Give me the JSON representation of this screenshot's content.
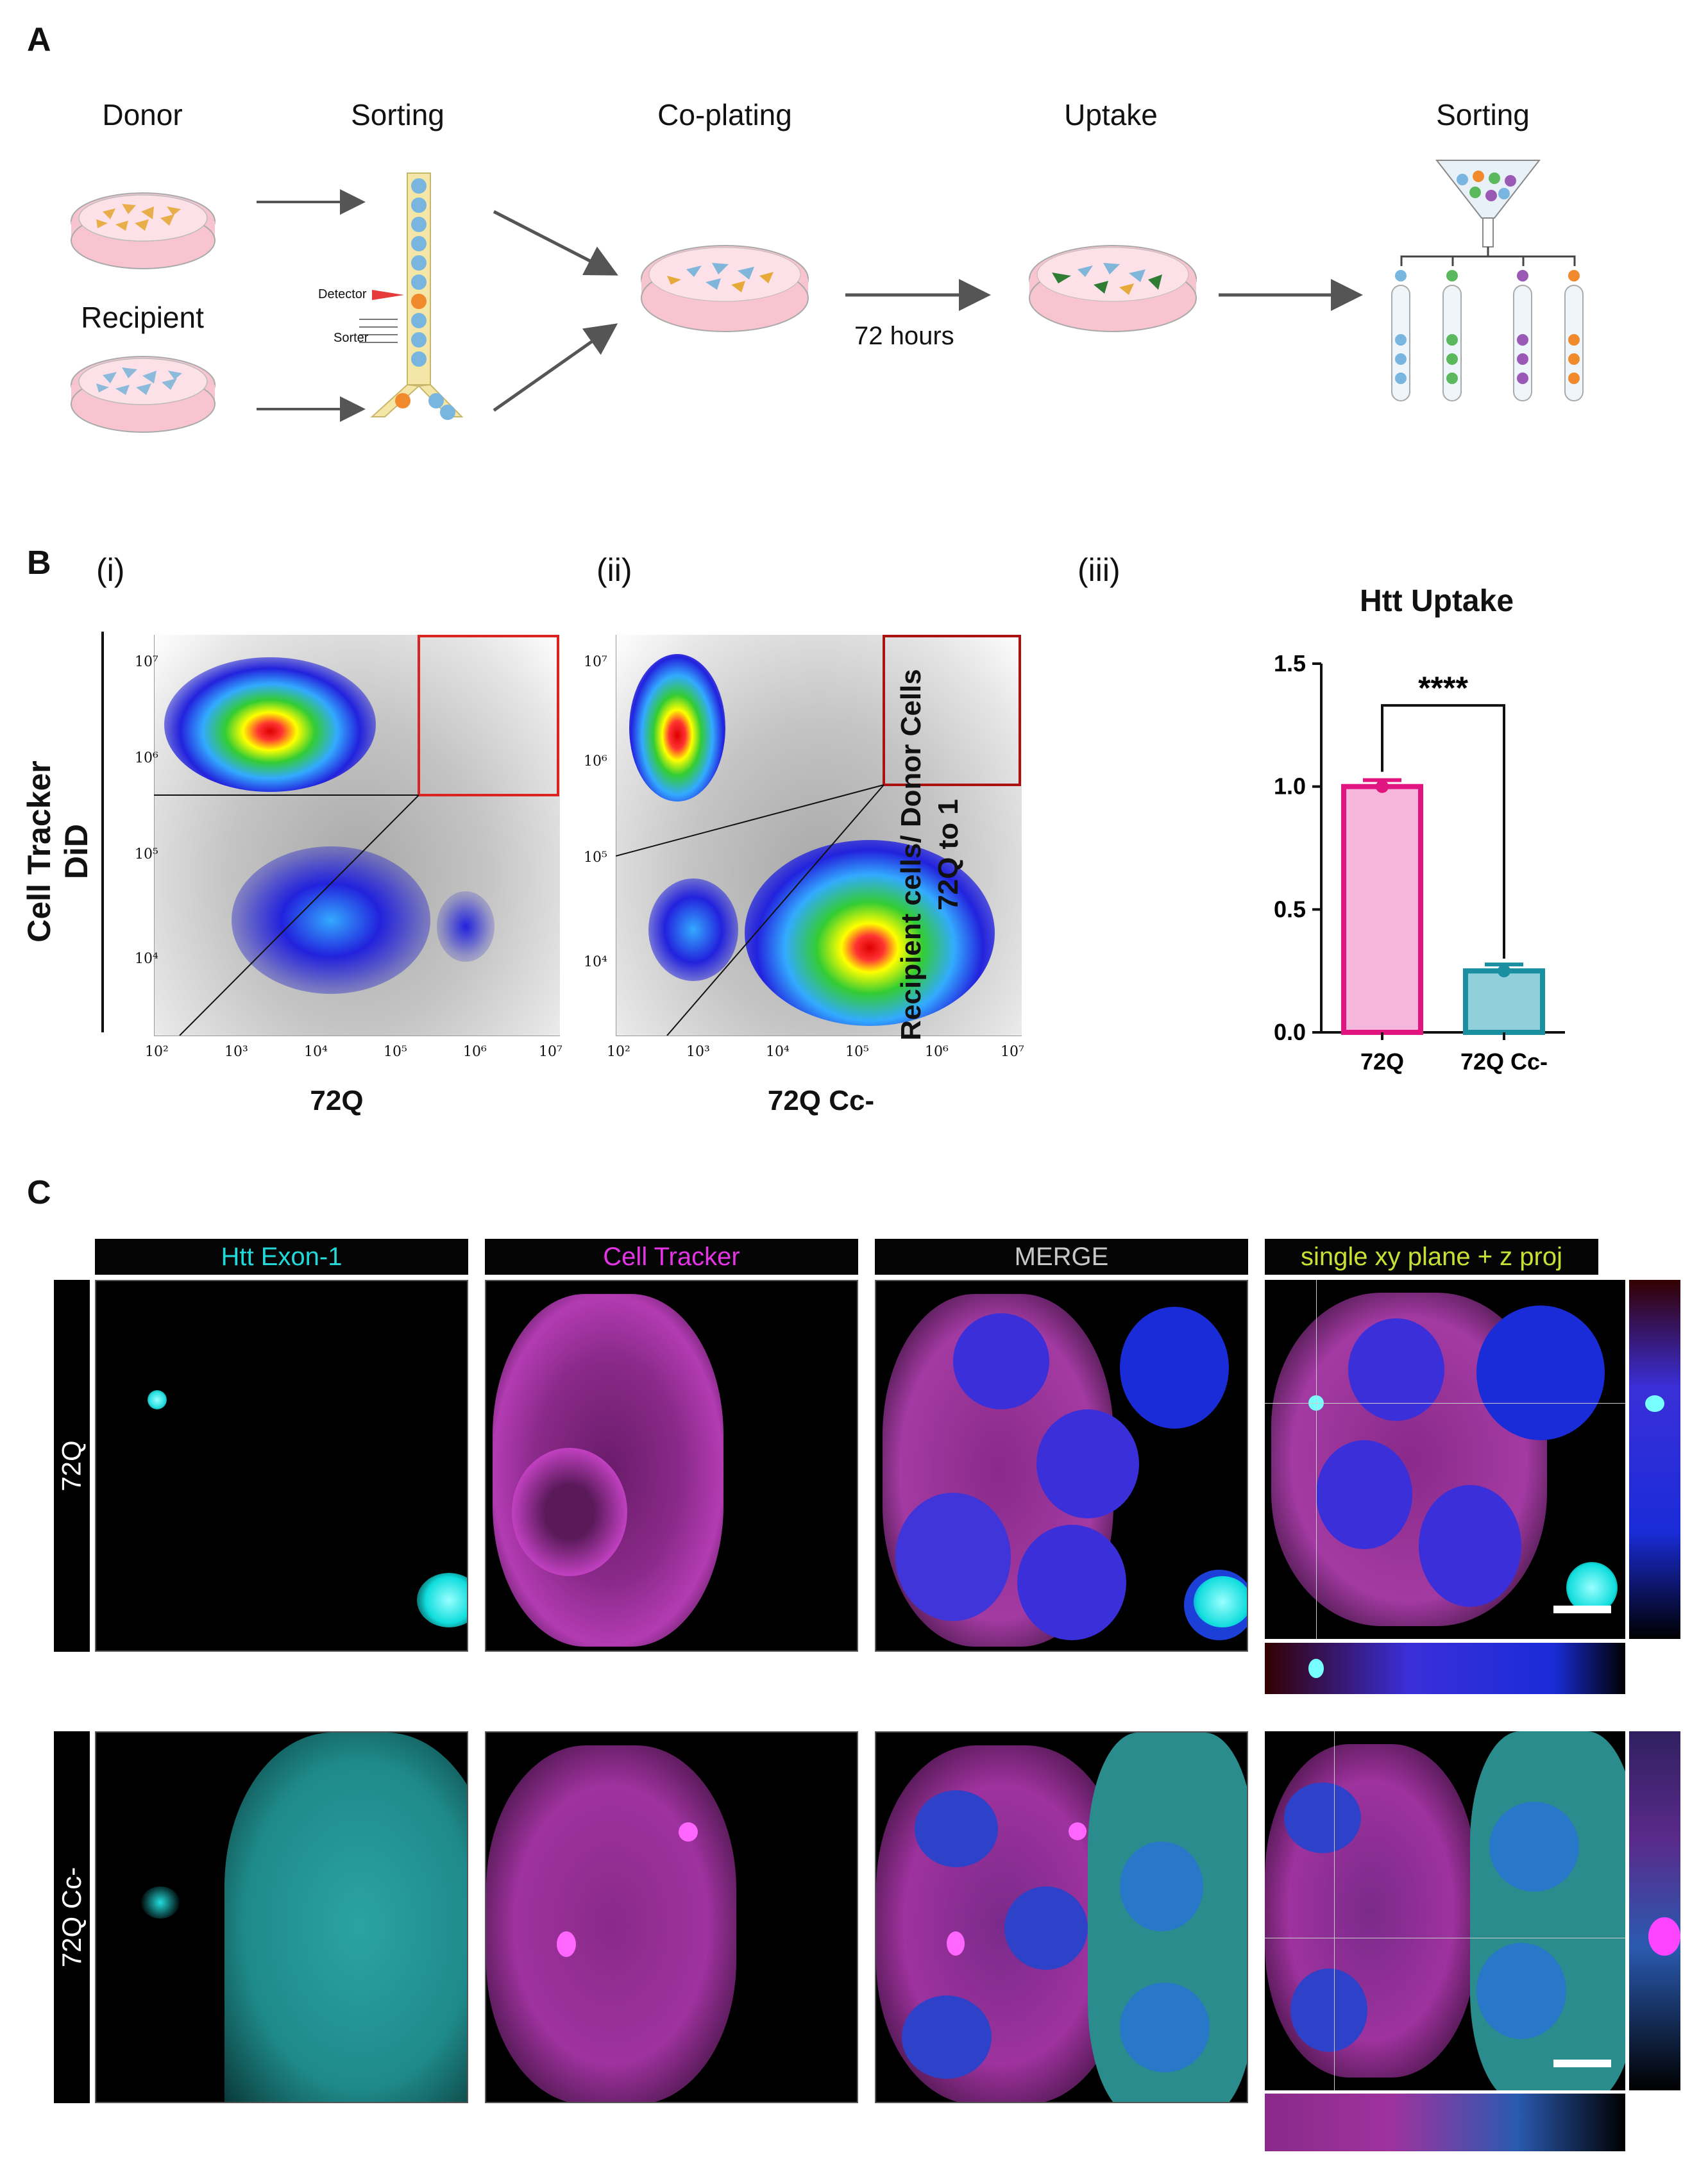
{
  "panel_a": {
    "letter": "A",
    "steps": {
      "donor": "Donor",
      "recipient": "Recipient",
      "sorting1": "Sorting",
      "coplating": "Co-plating",
      "uptake": "Uptake",
      "sorting2": "Sorting"
    },
    "detector_label": "Detector",
    "sorter_label": "Sorter",
    "time_label": "72 hours"
  },
  "panel_b": {
    "letter": "B",
    "sub_i": "(i)",
    "sub_ii": "(ii)",
    "sub_iii": "(iii)",
    "flow_ylabel": "Cell Tracker DiD",
    "flow_i_xlabel": "72Q",
    "flow_ii_xlabel": "72Q Cc-",
    "flow_ticks": [
      "10²",
      "10³",
      "10⁴",
      "10⁵",
      "10⁶",
      "10⁷"
    ],
    "flow_yticks": [
      "10⁷",
      "10⁶",
      "10⁵",
      "10⁴"
    ]
  },
  "chart_data": {
    "type": "bar",
    "title": "Htt Uptake",
    "ylabel": "Recipient cells/ Donor Cells 72Q to 1",
    "ylabel_line1": "Recipient cells/ Donor Cells",
    "ylabel_line2": "72Q to 1",
    "categories": [
      "72Q",
      "72Q Cc-"
    ],
    "values": [
      1.0,
      0.25
    ],
    "yticks": [
      "0.0",
      "0.5",
      "1.0",
      "1.5"
    ],
    "ylim": [
      0,
      1.5
    ],
    "significance": "****",
    "colors": {
      "bar1_fill": "#f7b6dc",
      "bar1_edge": "#e0157f",
      "bar2_fill": "#8fd0db",
      "bar2_edge": "#1a8fa0"
    }
  },
  "panel_c": {
    "letter": "C",
    "headers": [
      "Htt Exon-1",
      "Cell Tracker",
      "MERGE",
      "single xy plane + z proj"
    ],
    "header_colors": [
      "#23d8d8",
      "#e534e5",
      "#c8c8c8",
      "#c8e034"
    ],
    "rows": [
      "72Q",
      "72Q Cc-"
    ]
  }
}
